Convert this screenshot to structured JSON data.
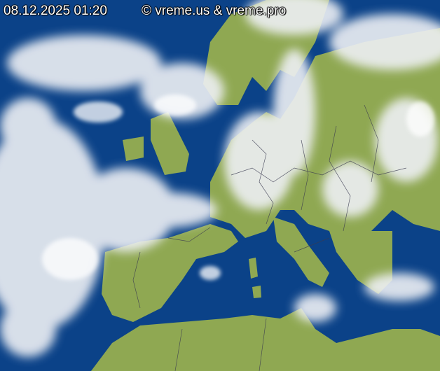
{
  "map": {
    "timestamp": "08.12.2025 01:20",
    "copyright": "© vreme.us & vreme.pro",
    "colors": {
      "sea": "#0a3f86",
      "land": "#8fa852",
      "cloud": "#eef0f4",
      "borders": "#3a3a50"
    }
  }
}
